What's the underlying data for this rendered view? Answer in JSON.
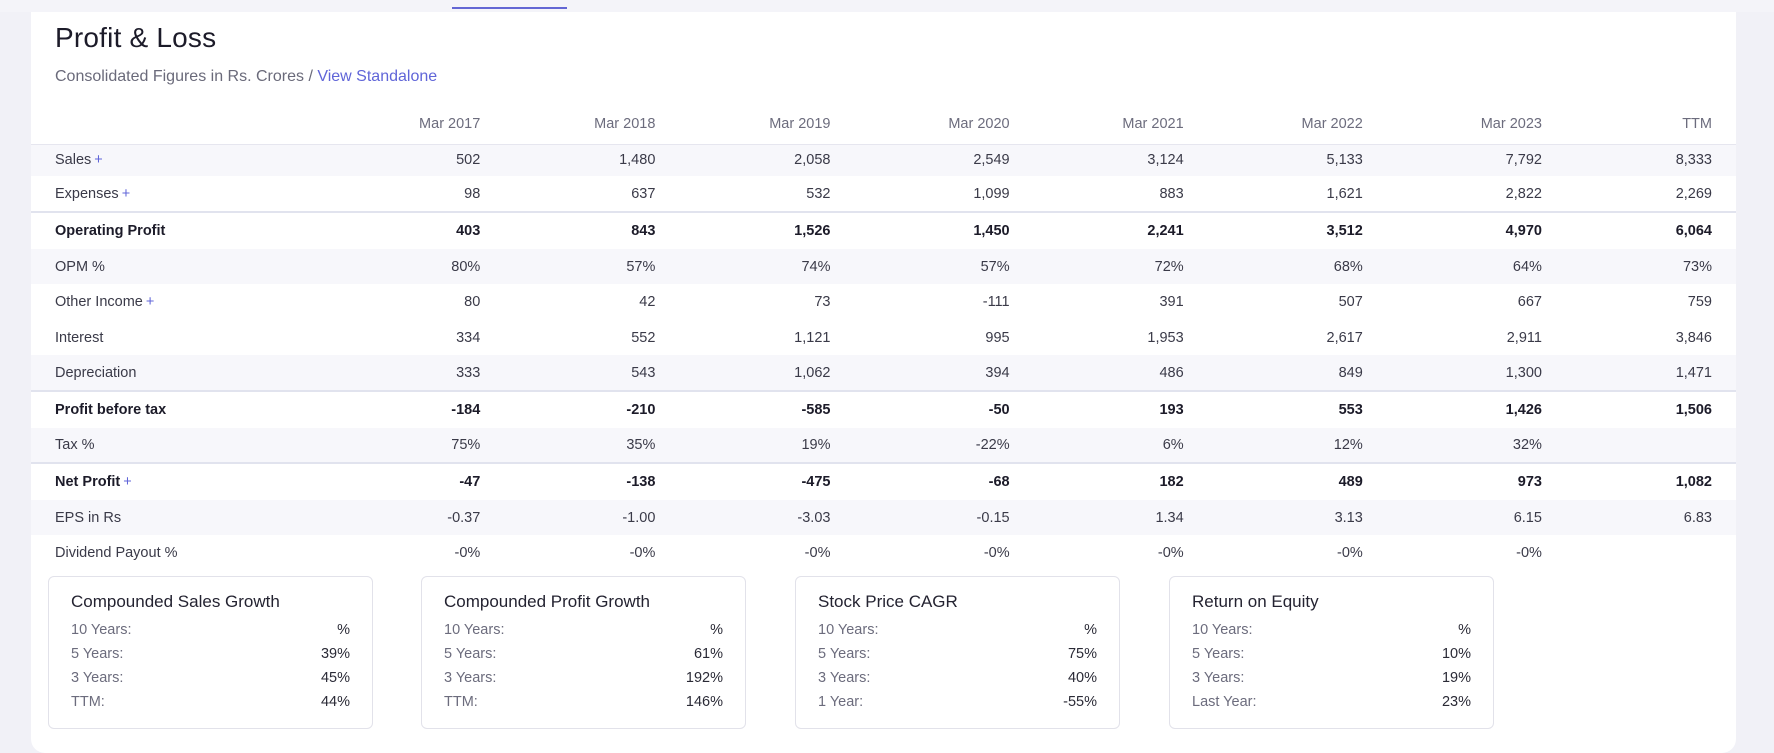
{
  "section": {
    "title": "Profit & Loss",
    "subtitle": "Consolidated Figures in Rs. Crores",
    "separator": " / ",
    "link_label": "View Standalone"
  },
  "table": {
    "columns": [
      "Mar 2017",
      "Mar 2018",
      "Mar 2019",
      "Mar 2020",
      "Mar 2021",
      "Mar 2022",
      "Mar 2023",
      "TTM"
    ],
    "rows": [
      {
        "label": "Sales",
        "expandable": true,
        "values": [
          "502",
          "1,480",
          "2,058",
          "2,549",
          "3,124",
          "5,133",
          "7,792",
          "8,333"
        ]
      },
      {
        "label": "Expenses",
        "expandable": true,
        "values": [
          "98",
          "637",
          "532",
          "1,099",
          "883",
          "1,621",
          "2,822",
          "2,269"
        ]
      },
      {
        "label": "Operating Profit",
        "expandable": false,
        "values": [
          "403",
          "843",
          "1,526",
          "1,450",
          "2,241",
          "3,512",
          "4,970",
          "6,064"
        ]
      },
      {
        "label": "OPM %",
        "expandable": false,
        "values": [
          "80%",
          "57%",
          "74%",
          "57%",
          "72%",
          "68%",
          "64%",
          "73%"
        ]
      },
      {
        "label": "Other Income",
        "expandable": true,
        "values": [
          "80",
          "42",
          "73",
          "-111",
          "391",
          "507",
          "667",
          "759"
        ]
      },
      {
        "label": "Interest",
        "expandable": false,
        "values": [
          "334",
          "552",
          "1,121",
          "995",
          "1,953",
          "2,617",
          "2,911",
          "3,846"
        ]
      },
      {
        "label": "Depreciation",
        "expandable": false,
        "values": [
          "333",
          "543",
          "1,062",
          "394",
          "486",
          "849",
          "1,300",
          "1,471"
        ]
      },
      {
        "label": "Profit before tax",
        "expandable": false,
        "values": [
          "-184",
          "-210",
          "-585",
          "-50",
          "193",
          "553",
          "1,426",
          "1,506"
        ]
      },
      {
        "label": "Tax %",
        "expandable": false,
        "values": [
          "75%",
          "35%",
          "19%",
          "-22%",
          "6%",
          "12%",
          "32%",
          ""
        ]
      },
      {
        "label": "Net Profit",
        "expandable": true,
        "values": [
          "-47",
          "-138",
          "-475",
          "-68",
          "182",
          "489",
          "973",
          "1,082"
        ]
      },
      {
        "label": "EPS in Rs",
        "expandable": false,
        "values": [
          "-0.37",
          "-1.00",
          "-3.03",
          "-0.15",
          "1.34",
          "3.13",
          "6.15",
          "6.83"
        ]
      },
      {
        "label": "Dividend Payout %",
        "expandable": false,
        "values": [
          "-0%",
          "-0%",
          "-0%",
          "-0%",
          "-0%",
          "-0%",
          "-0%",
          ""
        ]
      }
    ]
  },
  "growth_boxes": [
    {
      "title": "Compounded Sales Growth",
      "rows": [
        {
          "k": "10 Years:",
          "v": "%"
        },
        {
          "k": "5 Years:",
          "v": "39%"
        },
        {
          "k": "3 Years:",
          "v": "45%"
        },
        {
          "k": "TTM:",
          "v": "44%"
        }
      ]
    },
    {
      "title": "Compounded Profit Growth",
      "rows": [
        {
          "k": "10 Years:",
          "v": "%"
        },
        {
          "k": "5 Years:",
          "v": "61%"
        },
        {
          "k": "3 Years:",
          "v": "192%"
        },
        {
          "k": "TTM:",
          "v": "146%"
        }
      ]
    },
    {
      "title": "Stock Price CAGR",
      "rows": [
        {
          "k": "10 Years:",
          "v": "%"
        },
        {
          "k": "5 Years:",
          "v": "75%"
        },
        {
          "k": "3 Years:",
          "v": "40%"
        },
        {
          "k": "1 Year:",
          "v": "-55%"
        }
      ]
    },
    {
      "title": "Return on Equity",
      "rows": [
        {
          "k": "10 Years:",
          "v": "%"
        },
        {
          "k": "5 Years:",
          "v": "10%"
        },
        {
          "k": "3 Years:",
          "v": "19%"
        },
        {
          "k": "Last Year:",
          "v": "23%"
        }
      ]
    }
  ],
  "plus_symbol": "+",
  "colors": {
    "accent": "#6065d8",
    "stripe": "#f7f7fb",
    "page_bg": "#f1f1f7"
  }
}
